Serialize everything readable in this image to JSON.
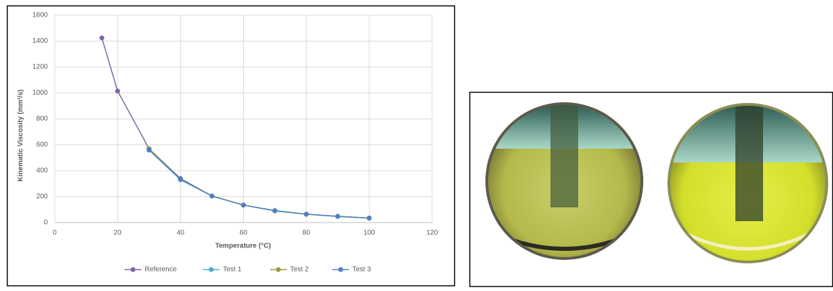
{
  "chart_data": {
    "type": "line",
    "x_label": "Temperature (°C)",
    "y_label": "Kinematic Viscosity (mm²/s)",
    "x": [
      15,
      20,
      30,
      40,
      50,
      60,
      70,
      80,
      90,
      100
    ],
    "series": [
      {
        "name": "Reference",
        "color": "#8064a2",
        "values": [
          1425,
          1015,
          570,
          340,
          205,
          135,
          92,
          65,
          48,
          35
        ]
      },
      {
        "name": "Test 1",
        "color": "#4bacc6",
        "values": [
          null,
          null,
          560,
          330,
          205,
          135,
          90,
          64,
          47,
          34
        ]
      },
      {
        "name": "Test 2",
        "color": "#9b9b3c",
        "values": [
          null,
          null,
          570,
          335,
          205,
          135,
          91,
          65,
          48,
          35
        ]
      },
      {
        "name": "Test 3",
        "color": "#4f81bd",
        "values": [
          null,
          null,
          560,
          335,
          205,
          135,
          92,
          65,
          48,
          35
        ]
      }
    ],
    "xlim": [
      0,
      120
    ],
    "xticks": [
      0,
      20,
      40,
      60,
      80,
      100,
      120
    ],
    "ylim": [
      0,
      1600
    ],
    "yticks": [
      0,
      200,
      400,
      600,
      800,
      1000,
      1200,
      1400,
      1600
    ],
    "grid": true,
    "legend": "bottom"
  }
}
